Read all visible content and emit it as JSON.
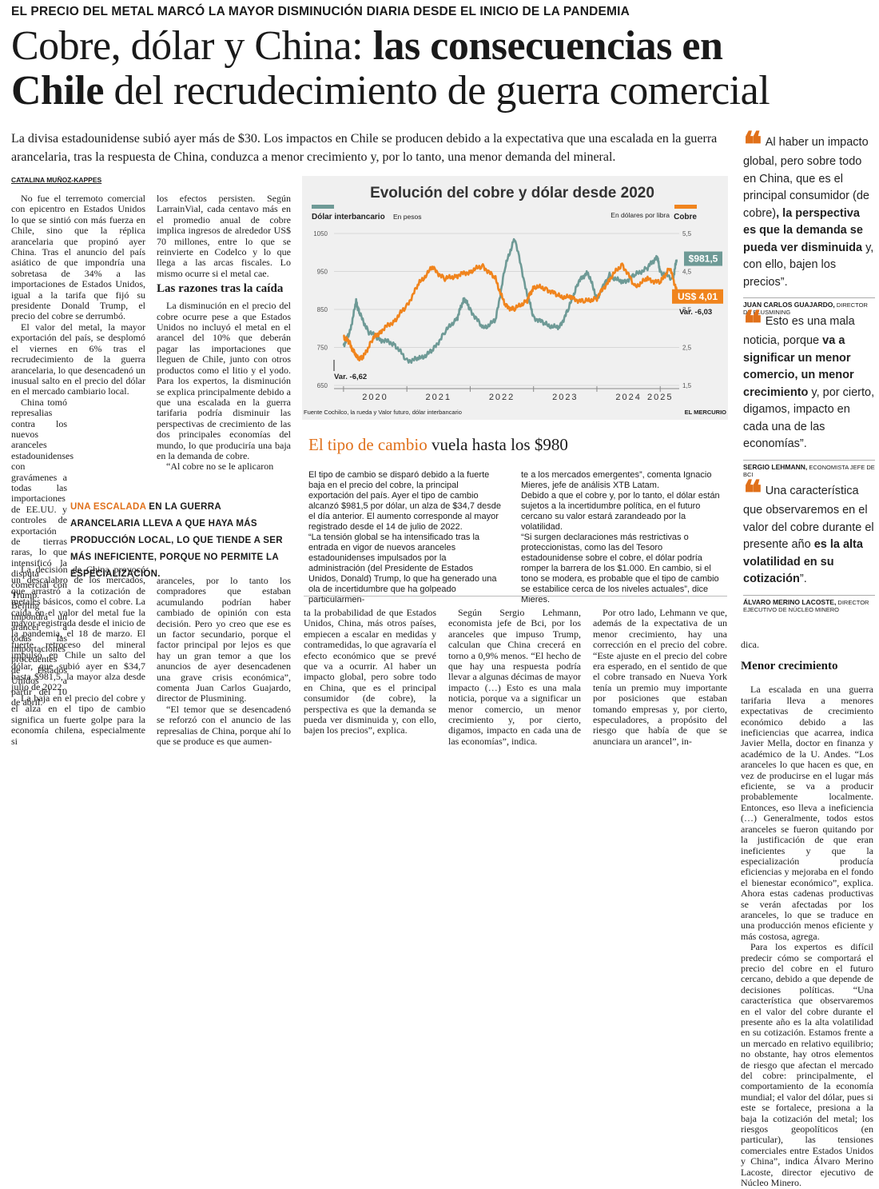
{
  "kicker": "EL PRECIO DEL METAL MARCÓ LA MAYOR DISMINUCIÓN DIARIA DESDE EL INICIO DE LA PANDEMIA",
  "headline": {
    "part1": "Cobre, dólar y China: ",
    "part2": "las consecuencias en",
    "part3": "Chile",
    "part4": " del recrudecimiento de guerra comercial"
  },
  "bajada": "La divisa estadounidense subió ayer más de $30. Los impactos en Chile se producen debido a la expectativa que una escalada en la guerra arancelaria, tras la respuesta de China, conduzca a menor crecimiento y, por lo tanto, una menor demanda del mineral.",
  "byline": "CATALINA MUÑOZ-KAPPES",
  "col1": {
    "p1": "No fue el terremoto comercial con epicentro en Estados Unidos lo que se sintió con más fuerza en Chile, sino que la réplica arancelaria que propinó ayer China. Tras el anuncio del país asiático de que impondría una sobretasa de 34% a las importaciones de Estados Unidos, igual a la tarifa que fijó su presidente Donald Trump, el precio del cobre se derrumbó.",
    "p2": "El valor del metal, la mayor exportación del país, se desplomó el viernes en 6% tras el recrudecimiento de la guerra arancelaria, lo que desencadenó un inusual salto en el precio del dólar en el mercado cambiario local.",
    "p3": "China tomó represalias contra los nuevos aranceles estadounidenses con gravámenes a todas las importaciones de EE.UU. y controles de exportación de tierras raras, lo que intensificó la disputa comercial con Trump. Beijing impondrá un arancel a todas las importaciones procedentes de Estados Unidos a partir del 10 de abril.",
    "p4": "La decisión de China provocó un descalabro de los mercados, que arrastró a la cotización de metales básicos, como el cobre. La caída en el valor del metal fue la mayor registrada desde el inicio de la pandemia, el 18 de marzo. El fuerte retroceso del mineral impulsó en Chile un salto del dólar, que subió ayer en $34,7 hasta $981,5, la mayor alza desde julio de 2022.",
    "p5": "La baja en el precio del cobre y el alza en el tipo de cambio significa un fuerte golpe para la economía chilena, especialmente si"
  },
  "col2": {
    "p1": "los efectos persisten. Según LarrainVial, cada centavo más en el promedio anual de cobre implica ingresos de alrededor US$ 70 millones, entre lo que se reinvierte en Codelco y lo que llega a las arcas fiscales. Lo mismo ocurre si el metal cae.",
    "subhead": "Las razones tras la caída",
    "p2": "La disminución en el precio del cobre ocurre pese a que Estados Unidos no incluyó el metal en el arancel del 10% que deberán pagar las importaciones que lleguen de Chile, junto con otros productos como el litio y el yodo. Para los expertos, la disminución se explica principalmente debido a que una escalada en la guerra tarifaria podría disminuir las perspectivas de crecimiento de las dos principales economías del mundo, lo que produciría una baja en la demanda de cobre.",
    "p3": "“Al cobre no se le aplicaron",
    "p4": "aranceles, por lo tanto los compradores que estaban acumulando podrían haber cambiado de opinión con esta decisión. Pero yo creo que ese es un factor secundario, porque el factor principal por lejos es que hay un gran temor a que los anuncios de ayer desencadenen una grave crisis económica”, comenta Juan Carlos Guajardo, director de Plusmining.",
    "p5": "“El temor que se desencadenó se reforzó con el anuncio de las represalias de China, porque ahí lo que se produce es que aumen-"
  },
  "pullquote": {
    "highlight": "UNA ESCALADA",
    "rest": " EN LA GUERRA ARANCELARIA LLEVA A QUE HAYA MÁS PRODUCCIÓN LOCAL, LO QUE TIENDE A SER MÁS INEFICIENTE, PORQUE NO PERMITE LA ESPECIALIZACIÓN."
  },
  "chart_data": {
    "type": "line",
    "title": "Evolución del cobre y dólar desde 2020",
    "left_axis": {
      "label": "Dólar interbancario",
      "unit": "En pesos",
      "ticks": [
        650,
        750,
        850,
        950,
        1050
      ],
      "ylim": [
        650,
        1050
      ]
    },
    "right_axis": {
      "label": "Cobre",
      "unit": "En dólares por libra",
      "ticks": [
        "1,5",
        "2,5",
        "3,5",
        "4,5",
        "5,5"
      ],
      "ylim": [
        1.5,
        5.5
      ]
    },
    "x_ticks": [
      "2020",
      "2021",
      "2022",
      "2023",
      "2024",
      "2025"
    ],
    "series": [
      {
        "name": "Dólar interbancario",
        "color": "#6e9a96",
        "axis": "left",
        "x": [
          2020.0,
          2020.1,
          2020.2,
          2020.25,
          2020.4,
          2020.6,
          2020.8,
          2021.0,
          2021.2,
          2021.4,
          2021.6,
          2021.8,
          2021.9,
          2022.0,
          2022.2,
          2022.4,
          2022.55,
          2022.7,
          2022.9,
          2023.0,
          2023.2,
          2023.4,
          2023.55,
          2023.7,
          2023.85,
          2024.0,
          2024.2,
          2024.4,
          2024.6,
          2024.8,
          2024.95,
          2025.0,
          2025.2,
          2025.26
        ],
        "values": [
          755,
          790,
          870,
          840,
          790,
          770,
          760,
          715,
          720,
          740,
          790,
          830,
          880,
          850,
          800,
          820,
          960,
          1040,
          890,
          830,
          810,
          800,
          850,
          920,
          950,
          880,
          940,
          920,
          940,
          960,
          990,
          950,
          930,
          981.5
        ]
      },
      {
        "name": "Cobre",
        "color": "#f0841d",
        "axis": "right",
        "x": [
          2020.0,
          2020.1,
          2020.2,
          2020.3,
          2020.45,
          2020.6,
          2020.8,
          2021.0,
          2021.2,
          2021.4,
          2021.6,
          2021.8,
          2022.0,
          2022.2,
          2022.4,
          2022.55,
          2022.7,
          2022.9,
          2023.0,
          2023.2,
          2023.4,
          2023.6,
          2023.8,
          2024.0,
          2024.2,
          2024.4,
          2024.6,
          2024.8,
          2025.0,
          2025.15,
          2025.26
        ],
        "values": [
          2.8,
          2.6,
          2.25,
          2.2,
          2.7,
          2.95,
          3.2,
          3.6,
          4.2,
          4.6,
          4.3,
          4.4,
          4.5,
          4.65,
          4.3,
          3.6,
          3.5,
          3.75,
          4.1,
          4.05,
          3.85,
          3.8,
          3.7,
          3.8,
          4.3,
          4.7,
          4.1,
          4.3,
          4.2,
          4.6,
          4.01
        ]
      }
    ],
    "annotations": {
      "dolar_last": "$981,5",
      "cobre_last": "US$ 4,01",
      "cobre_var": "Var. -6,03",
      "dolar_var": "Var. -6,62"
    },
    "source": "Fuente Cochilco, la rueda y Valor futuro, dólar interbancario",
    "credit": "EL MERCURIO"
  },
  "box2": {
    "title_o": "El tipo de cambio",
    "title_rest": " vuela hasta los $980",
    "c1": "El tipo de cambio se disparó debido a la fuerte baja en el precio del cobre, la principal exportación del país. Ayer el tipo de cambio alcanzó $981,5 por dólar, un alza de $34,7 desde el día anterior. El aumento corresponde al mayor registrado desde el 14 de julio de 2022.",
    "c1b": "“La tensión global se ha intensificado tras la entrada en vigor de nuevos aranceles estadounidenses impulsados por la administración (del Presidente de Estados Unidos, Donald) Trump, lo que ha generado una ola de incertidumbre que ha golpeado particularmen-",
    "c2": "te a los mercados emergentes”, comenta Ignacio Mieres, jefe de análisis XTB Latam.",
    "c2b": "Debido a que el cobre y, por lo tanto, el dólar están sujetos a la incertidumbre política, en el futuro cercano su valor estará zarandeado por la volatilidad.",
    "c2c": "“Si surgen declaraciones más restrictivas o proteccionistas, como las del Tesoro estadounidense sobre el cobre, el dólar podría romper la barrera de los $1.000. En cambio, si el tono se modera, es probable que el tipo de cambio se estabilice cerca de los niveles actuales”, dice Mieres."
  },
  "lower": {
    "c3": "ta la probabilidad de que Estados Unidos, China, más otros países, empiecen a escalar en medidas y contramedidas, lo que agravaría el efecto económico que se prevé que va a ocurrir. Al haber un impacto global, pero sobre todo en China, que es el principal consumidor (de cobre), la perspectiva es que la demanda se pueda ver disminuida y, con ello, bajen los precios”, explica.",
    "c4": "Según Sergio Lehmann, economista jefe de Bci, por los aranceles que impuso Trump, calculan que China crecerá en torno a 0,9% menos. “El hecho de que hay una respuesta podría llevar a algunas décimas de mayor impacto (…) Esto es una mala noticia, porque va a significar un menor comercio, un menor crecimiento y, por cierto, digamos, impacto en cada una de las economías”, indica.",
    "c5": "Por otro lado, Lehmann ve que, además de la expectativa de un menor crecimiento, hay una corrección en el precio del cobre. “Este ajuste en el precio del cobre era esperado, en el sentido de que el cobre transado en Nueva York tenía un premio muy importante por posiciones que estaban tomando empresas y, por cierto, especuladores, a propósito del riesgo que había de que se anunciara un arancel”, in-"
  },
  "quotes": [
    {
      "a": "Al haber un impacto global, pero sobre todo en China, que es el principal consumidor (de cobre)",
      "b": ", la perspectiva es que la demanda se pueda ver disminuida",
      "c": " y, con ello, bajen los precios”.",
      "name": "JUAN CARLOS GUAJARDO,",
      "role": " DIRECTOR DE PLUSMINING"
    },
    {
      "a": "Esto es una mala noticia, porque ",
      "b": "va a significar un menor comercio, un menor crecimiento",
      "c": " y, por cierto, digamos, impacto en cada una de las economías”.",
      "name": "SERGIO LEHMANN,",
      "role": " ECONOMISTA JEFE DE BCI"
    },
    {
      "a": "Una característica que observaremos en el valor del cobre durante el presente año ",
      "b": "es la alta volatilidad en su cotización",
      "c": "”.",
      "name": "ÁLVARO MERINO LACOSTE,",
      "role": " DIRECTOR EJECUTIVO DE NÚCLEO MINERO"
    }
  ],
  "col6": {
    "top": "dica.",
    "subhead": "Menor crecimiento",
    "p1": "La escalada en una guerra tarifaria lleva a menores expectativas de crecimiento económico debido a las ineficiencias que acarrea, indica Javier Mella, doctor en finanza y académico de la U. Andes. “Los aranceles lo que hacen es que, en vez de producirse en el lugar más eficiente, se va a producir probablemente localmente. Entonces, eso lleva a ineficiencia (…) Generalmente, todos estos aranceles se fueron quitando por la justificación de que eran ineficientes y que la especialización producía eficiencias y mejoraba en el fondo el bienestar económico”, explica. Ahora estas cadenas productivas se verán afectadas por los aranceles, lo que se traduce en una producción menos eficiente y más costosa, agrega.",
    "p2": "Para los expertos es difícil predecir cómo se comportará el precio del cobre en el futuro cercano, debido a que depende de decisiones políticas. “Una característica que observaremos en el valor del cobre durante el presente año es la alta volatilidad en su cotización. Estamos frente a un mercado en relativo equilibrio; no obstante, hay otros elementos de riesgo que afectan el mercado del cobre: principalmente, el comportamiento de la economía mundial; el valor del dólar, pues si este se fortalece, presiona a la baja la cotización del metal; los riesgos geopolíticos (en particular), las tensiones comerciales entre Estados Unidos y China”, indica Álvaro Merino Lacoste, director ejecutivo de Núcleo Minero."
  }
}
